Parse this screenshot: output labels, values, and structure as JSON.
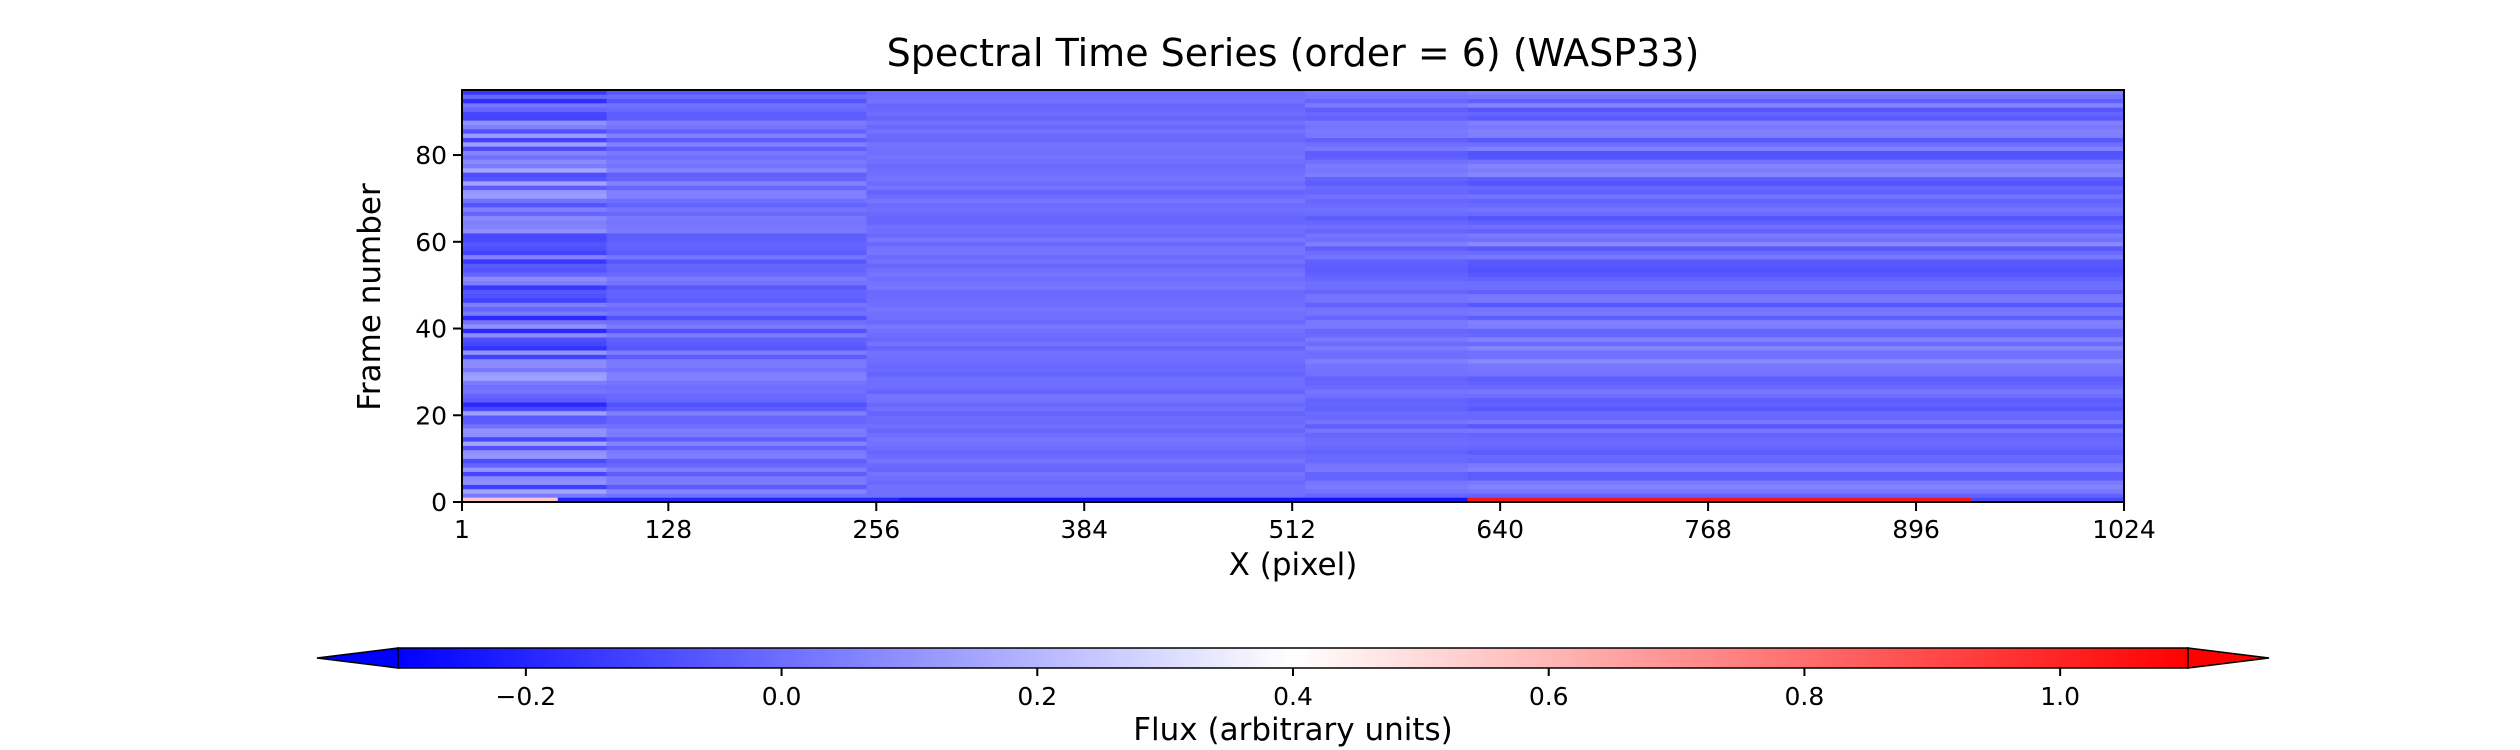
{
  "chart_data": {
    "type": "heatmap",
    "title": "Spectral Time Series (order = 6) (WASP33)",
    "xlabel": "X (pixel)",
    "ylabel": "Frame number",
    "xlim": [
      1,
      1024
    ],
    "ylim": [
      0,
      95
    ],
    "x_ticks": [
      1,
      128,
      256,
      384,
      512,
      640,
      768,
      896,
      1024
    ],
    "x_tick_labels": [
      "1",
      "128",
      "256",
      "384",
      "512",
      "640",
      "768",
      "896",
      "1024"
    ],
    "y_ticks": [
      0,
      20,
      40,
      60,
      80
    ],
    "y_tick_labels": [
      "0",
      "20",
      "40",
      "60",
      "80"
    ],
    "grid": false,
    "colormap": "bwr",
    "colormap_stops": [
      "#0000ff",
      "#ffffff",
      "#ff0000"
    ],
    "color_range": [
      -0.3,
      1.1
    ],
    "colorbar": {
      "label": "Flux (arbitrary units)",
      "orientation": "horizontal",
      "placement": "bottom",
      "extend": "both",
      "ticks": [
        -0.2,
        0.0,
        0.2,
        0.4,
        0.6,
        0.8,
        1.0
      ],
      "tick_labels": [
        "−0.2",
        "0.0",
        "0.2",
        "0.4",
        "0.6",
        "0.8",
        "1.0"
      ]
    },
    "summary": {
      "background_flux": 0.0,
      "frame0_segments": [
        {
          "x_range": [
            1,
            60
          ],
          "flux": 0.55
        },
        {
          "x_range": [
            60,
            270
          ],
          "flux": -0.2
        },
        {
          "x_range": [
            270,
            620
          ],
          "flux": -0.25
        },
        {
          "x_range": [
            620,
            930
          ],
          "flux": 1.05
        },
        {
          "x_range": [
            930,
            1024
          ],
          "flux": -0.1
        }
      ]
    }
  }
}
